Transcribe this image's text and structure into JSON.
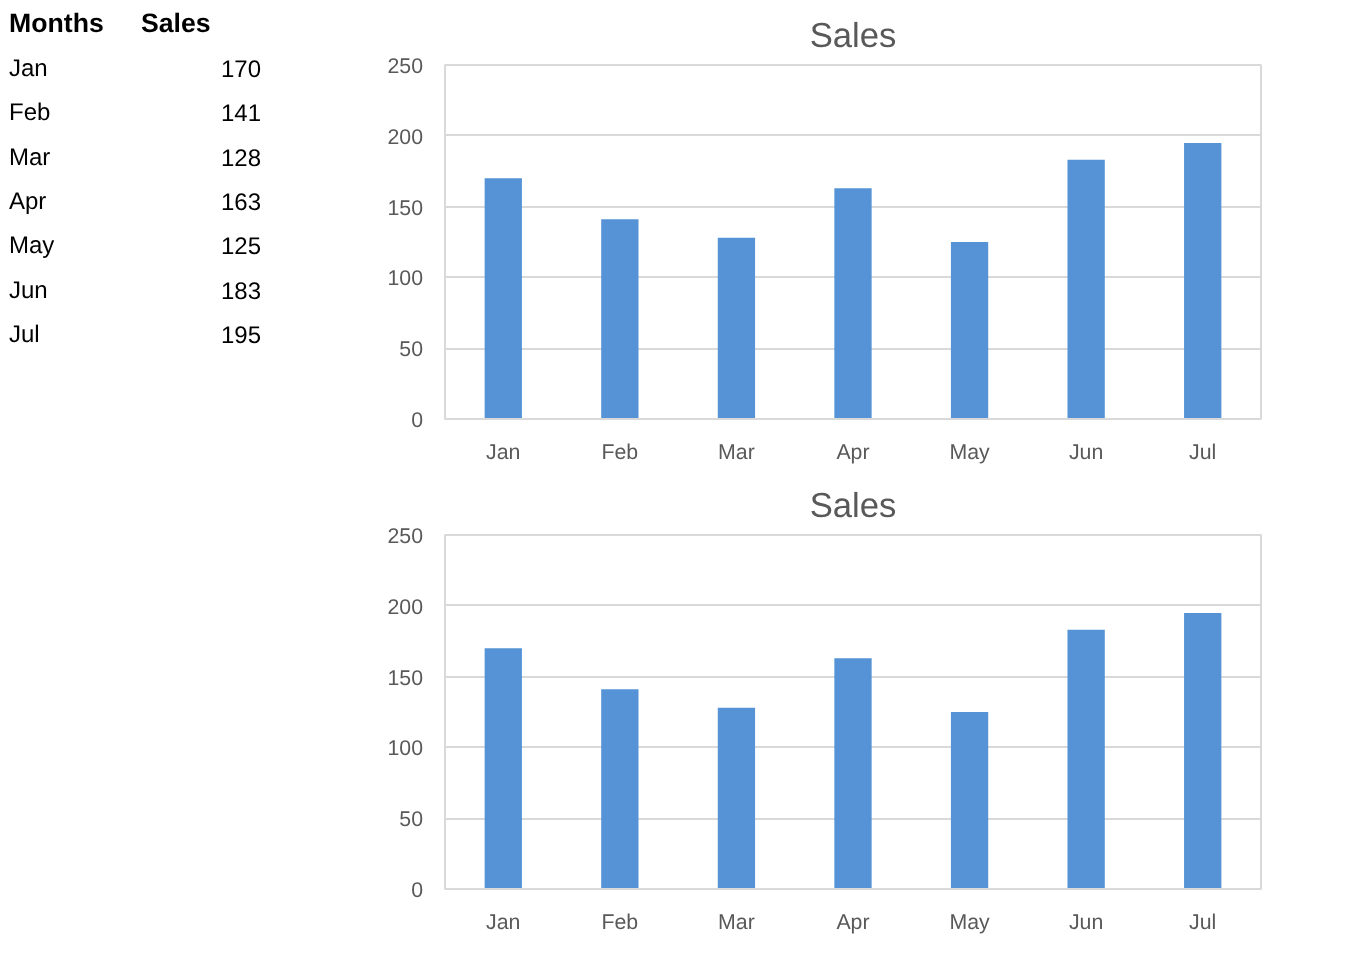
{
  "chart_data": [
    {
      "type": "other",
      "categories": [
        "Jan",
        "Feb",
        "Mar",
        "Apr",
        "May",
        "Jun",
        "Jul"
      ],
      "values": [
        170,
        141,
        128,
        163,
        125,
        183,
        195
      ],
      "data_labels": true,
      "annotations": [
        "Months",
        "Sales"
      ]
    },
    {
      "type": "bar",
      "title": "Sales",
      "categories": [
        "Jan",
        "Feb",
        "Mar",
        "Apr",
        "May",
        "Jun",
        "Jul"
      ],
      "values": [
        170,
        141,
        128,
        163,
        125,
        183,
        195
      ],
      "color": "#5593d6",
      "ylim": [
        0,
        250
      ],
      "yticks": [
        0,
        50,
        100,
        150,
        200,
        250
      ],
      "grid": "y"
    },
    {
      "type": "bar",
      "title": "Sales",
      "categories": [
        "Jan",
        "Feb",
        "Mar",
        "Apr",
        "May",
        "Jun",
        "Jul"
      ],
      "values": [
        170,
        141,
        128,
        163,
        125,
        183,
        195
      ],
      "color": "#5593d6",
      "ylim": [
        0,
        250
      ],
      "yticks": [
        0,
        50,
        100,
        150,
        200,
        250
      ],
      "grid": "y"
    }
  ]
}
